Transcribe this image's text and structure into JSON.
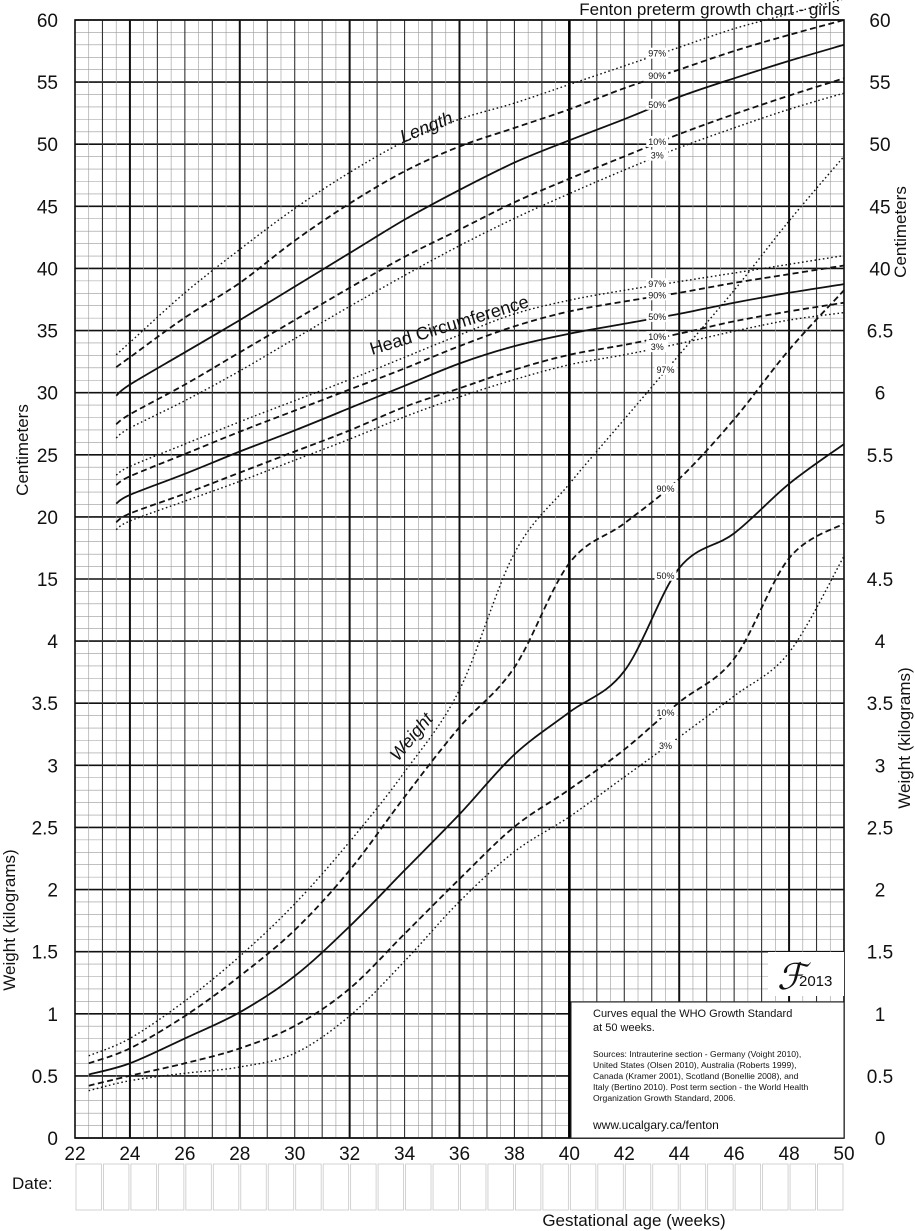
{
  "chart_data": {
    "type": "line",
    "title": "Fenton preterm growth chart - girls",
    "xlabel": "Gestational age (weeks)",
    "date_label": "Date:",
    "xlim": [
      22,
      50
    ],
    "x_ticks": [
      22,
      24,
      26,
      28,
      30,
      32,
      34,
      36,
      38,
      40,
      42,
      44,
      46,
      48,
      50
    ],
    "left_axis": {
      "upper_label": "Centimeters",
      "lower_label": "Weight (kilograms)",
      "ticks": [
        "60",
        "55",
        "50",
        "45",
        "40",
        "35",
        "30",
        "25",
        "20",
        "15",
        "4",
        "3.5",
        "3",
        "2.5",
        "2",
        "1.5",
        "1",
        "0.5",
        "0"
      ]
    },
    "right_axis": {
      "upper_label": "Centimeters",
      "lower_label": "Weight (kilograms)",
      "ticks": [
        "60",
        "55",
        "50",
        "45",
        "40",
        "6.5",
        "6",
        "5.5",
        "5",
        "4.5",
        "4",
        "3.5",
        "3",
        "2.5",
        "2",
        "1.5",
        "1",
        "0.5",
        "0"
      ]
    },
    "scale_note": "Centimeters: 60 at top down to 15 (5 cm per major line). Weight lower section: 0 to 4 kg (0.5 kg per major line); weight upper section 4 to 6.5 kg shares the cm grid (35 cm = 6.5 kg).",
    "groups": [
      {
        "name": "Length",
        "unit": "cm",
        "series": [
          {
            "percentile": "97",
            "label": "97%",
            "style": "dotted",
            "x": [
              23.5,
              24,
              26,
              28,
              30,
              32,
              34,
              36,
              38,
              40,
              42,
              44,
              46,
              48,
              50
            ],
            "y": [
              33,
              34,
              38,
              41.5,
              44.8,
              47.7,
              50.2,
              52,
              53.3,
              54.8,
              56.3,
              57.8,
              59.3,
              60.5,
              61.7
            ]
          },
          {
            "percentile": "90",
            "label": "90%",
            "style": "dashed",
            "x": [
              23.5,
              24,
              26,
              28,
              30,
              32,
              34,
              36,
              38,
              40,
              42,
              44,
              46,
              48,
              50
            ],
            "y": [
              32,
              32.8,
              36,
              38.8,
              42.2,
              45.2,
              47.8,
              49.8,
              51.3,
              52.8,
              54.5,
              56,
              57.5,
              58.8,
              60
            ]
          },
          {
            "percentile": "50",
            "label": "50%",
            "style": "solid",
            "x": [
              23.5,
              24,
              26,
              28,
              30,
              32,
              34,
              36,
              38,
              40,
              42,
              44,
              46,
              48,
              50
            ],
            "y": [
              29.7,
              30.6,
              33.2,
              35.8,
              38.5,
              41.2,
              43.9,
              46.3,
              48.5,
              50.3,
              52,
              53.8,
              55.3,
              56.7,
              58
            ]
          },
          {
            "percentile": "10",
            "label": "10%",
            "style": "dashed",
            "x": [
              23.5,
              24,
              26,
              28,
              30,
              32,
              34,
              36,
              38,
              40,
              42,
              44,
              46,
              48,
              50
            ],
            "y": [
              27.4,
              28.2,
              30.6,
              33.2,
              35.8,
              38.4,
              40.9,
              43.1,
              45.3,
              47.2,
              49,
              50.8,
              52.4,
              53.9,
              55.3
            ]
          },
          {
            "percentile": "3",
            "label": "3%",
            "style": "dotted",
            "x": [
              23.5,
              24,
              26,
              28,
              30,
              32,
              34,
              36,
              38,
              40,
              42,
              44,
              46,
              48,
              50
            ],
            "y": [
              26.3,
              27.1,
              29.3,
              31.7,
              34.3,
              36.9,
              39.4,
              41.8,
              44,
              46,
              47.9,
              49.7,
              51.3,
              52.8,
              54.1
            ]
          }
        ]
      },
      {
        "name": "Head Circumference",
        "unit": "cm",
        "series": [
          {
            "percentile": "97",
            "label": "97%",
            "style": "dotted",
            "x": [
              23.5,
              24,
              26,
              28,
              30,
              32,
              34,
              36,
              38,
              40,
              42,
              44,
              46,
              48,
              50
            ],
            "y": [
              23.3,
              24,
              25.8,
              27.6,
              29.3,
              31,
              32.8,
              34.6,
              36.3,
              37.4,
              38.2,
              38.9,
              39.6,
              40.3,
              41
            ]
          },
          {
            "percentile": "90",
            "label": "90%",
            "style": "dashed",
            "x": [
              23.5,
              24,
              26,
              28,
              30,
              32,
              34,
              36,
              38,
              40,
              42,
              44,
              46,
              48,
              50
            ],
            "y": [
              22.5,
              23.2,
              25,
              26.8,
              28.5,
              30.2,
              31.9,
              33.7,
              35.3,
              36.5,
              37.3,
              38,
              38.8,
              39.5,
              40.2
            ]
          },
          {
            "percentile": "50",
            "label": "50%",
            "style": "solid",
            "x": [
              23.5,
              24,
              26,
              28,
              30,
              32,
              34,
              36,
              38,
              40,
              42,
              44,
              46,
              48,
              50
            ],
            "y": [
              21,
              21.7,
              23.4,
              25.2,
              26.9,
              28.7,
              30.5,
              32.3,
              33.7,
              34.7,
              35.5,
              36.3,
              37.2,
              38,
              38.7
            ]
          },
          {
            "percentile": "10",
            "label": "10%",
            "style": "dashed",
            "x": [
              23.5,
              24,
              26,
              28,
              30,
              32,
              34,
              36,
              38,
              40,
              42,
              44,
              46,
              48,
              50
            ],
            "y": [
              19.5,
              20.2,
              21.8,
              23.5,
              25.2,
              26.9,
              28.8,
              30.3,
              31.8,
              33,
              33.8,
              34.7,
              35.7,
              36.5,
              37.2
            ]
          },
          {
            "percentile": "3",
            "label": "3%",
            "style": "dotted",
            "x": [
              23.5,
              24,
              26,
              28,
              30,
              32,
              34,
              36,
              38,
              40,
              42,
              44,
              46,
              48,
              50
            ],
            "y": [
              18.9,
              19.6,
              21.2,
              22.8,
              24.5,
              26.2,
              28,
              29.6,
              31,
              32.2,
              33,
              33.9,
              34.9,
              35.8,
              36.4
            ]
          }
        ]
      },
      {
        "name": "Weight",
        "unit": "kg",
        "series": [
          {
            "percentile": "97",
            "label": "97%",
            "style": "dotted",
            "x": [
              22.5,
              24,
              26,
              28,
              30,
              32,
              34,
              36,
              38,
              40,
              42,
              44,
              46,
              48,
              50
            ],
            "y": [
              0.66,
              0.8,
              1.1,
              1.46,
              1.88,
              2.38,
              2.94,
              3.6,
              4.25,
              4.95,
              5.6,
              6.25,
              6.9,
              7.6,
              8.25
            ]
          },
          {
            "percentile": "90",
            "label": "90%",
            "style": "dashed",
            "x": [
              22.5,
              24,
              26,
              28,
              30,
              32,
              34,
              36,
              38,
              40,
              42,
              44,
              46,
              48,
              50
            ],
            "y": [
              0.6,
              0.72,
              0.98,
              1.3,
              1.67,
              2.15,
              2.74,
              3.3,
              3.78,
              4.15,
              4.55,
              5,
              5.6,
              6.3,
              6.9
            ]
          },
          {
            "percentile": "50",
            "label": "50%",
            "style": "solid",
            "x": [
              22.5,
              24,
              26,
              28,
              30,
              32,
              34,
              36,
              38,
              40,
              42,
              44,
              46,
              48,
              50
            ],
            "y": [
              0.51,
              0.6,
              0.8,
              1.01,
              1.3,
              1.7,
              2.15,
              2.6,
              3.08,
              3.42,
              3.75,
              4.1,
              4.45,
              4.95,
              5.35
            ]
          },
          {
            "percentile": "10",
            "label": "10%",
            "style": "dashed",
            "x": [
              22.5,
              24,
              26,
              28,
              30,
              32,
              34,
              36,
              38,
              40,
              42,
              44,
              46,
              48,
              50
            ],
            "y": [
              0.42,
              0.5,
              0.6,
              0.72,
              0.9,
              1.2,
              1.64,
              2.08,
              2.5,
              2.8,
              3.12,
              3.5,
              3.85,
              4.2,
              4.55
            ]
          },
          {
            "percentile": "3",
            "label": "3%",
            "style": "dotted",
            "x": [
              22.5,
              24,
              26,
              28,
              30,
              32,
              34,
              36,
              38,
              40,
              42,
              44,
              46,
              48,
              50
            ],
            "y": [
              0.38,
              0.46,
              0.52,
              0.57,
              0.68,
              0.98,
              1.42,
              1.9,
              2.3,
              2.58,
              2.9,
              3.22,
              3.55,
              3.9,
              4.22
            ]
          }
        ]
      }
    ],
    "logo": "ℱ",
    "logo_year": "2013",
    "notes": {
      "line1": "Curves equal the WHO Growth Standard",
      "line2": "at 50 weeks.",
      "sources": [
        "Sources: Intrauterine section - Germany (Voight 2010),",
        "United States (Olsen 2010), Australia (Roberts 1999),",
        "Canada (Kramer 2001), Scotland (Bonellie 2008), and",
        "Italy (Bertino 2010). Post term section - the World Health",
        "Organization Growth Standard, 2006."
      ],
      "url": "www.ucalgary.ca/fenton"
    }
  }
}
